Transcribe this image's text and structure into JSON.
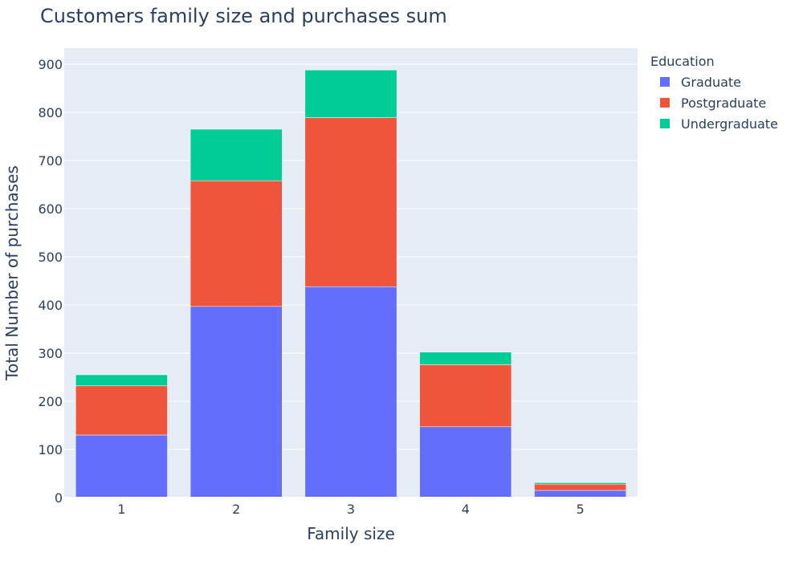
{
  "chart_data": {
    "type": "bar",
    "stacked": true,
    "title": "Customers family size and purchases sum",
    "xlabel": "Family size",
    "ylabel": "Total Number of purchases",
    "categories": [
      "1",
      "2",
      "3",
      "4",
      "5"
    ],
    "ylim": [
      0,
      900
    ],
    "yticks": [
      0,
      100,
      200,
      300,
      400,
      500,
      600,
      700,
      800,
      900
    ],
    "grid": true,
    "legend": {
      "title": "Education",
      "placement": "top-right"
    },
    "series": [
      {
        "name": "Graduate",
        "color": "#636efa",
        "values": [
          130,
          397,
          438,
          147,
          15
        ]
      },
      {
        "name": "Postgraduate",
        "color": "#ef553b",
        "values": [
          102,
          261,
          351,
          129,
          13
        ]
      },
      {
        "name": "Undergraduate",
        "color": "#00cc96",
        "values": [
          23,
          107,
          99,
          26,
          3
        ]
      }
    ],
    "colors": {
      "plot_background": "#e5ecf6",
      "gridline": "#ffffff",
      "text": "#2a3f5f"
    }
  }
}
